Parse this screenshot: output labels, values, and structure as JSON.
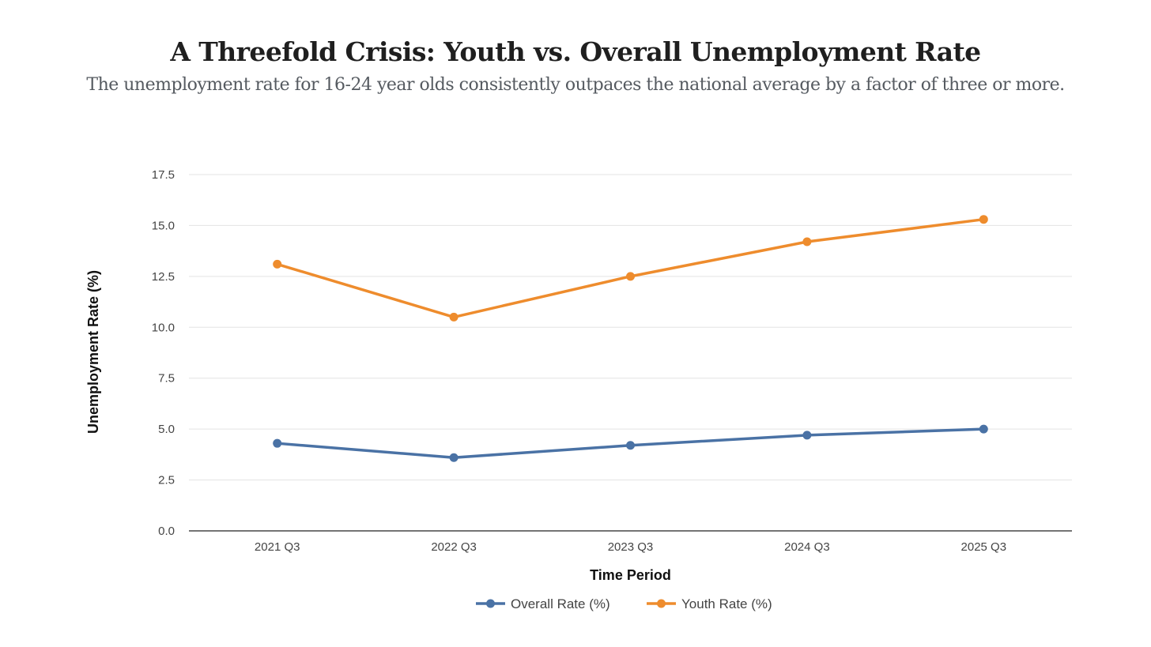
{
  "header": {
    "title": "A Threefold Crisis: Youth vs. Overall Unemployment Rate",
    "subtitle": "The unemployment rate for 16-24 year olds consistently outpaces the national average by a factor of three or more."
  },
  "chart_data": {
    "type": "line",
    "title": "A Threefold Crisis: Youth vs. Overall Unemployment Rate",
    "subtitle": "The unemployment rate for 16-24 year olds consistently outpaces the national average by a factor of three or more.",
    "categories": [
      "2021 Q3",
      "2022 Q3",
      "2023 Q3",
      "2024 Q3",
      "2025 Q3"
    ],
    "series": [
      {
        "name": "Overall Rate (%)",
        "color": "#4a72a5",
        "values": [
          4.3,
          3.6,
          4.2,
          4.7,
          5.0
        ]
      },
      {
        "name": "Youth Rate (%)",
        "color": "#ee8c2d",
        "values": [
          13.1,
          10.5,
          12.5,
          14.2,
          15.3
        ]
      }
    ],
    "xlabel": "Time Period",
    "ylabel": "Unemployment Rate (%)",
    "ylim": [
      0,
      17.5
    ],
    "yticks": [
      "0.0",
      "2.5",
      "5.0",
      "7.5",
      "10.0",
      "12.5",
      "15.0",
      "17.5"
    ],
    "grid": true,
    "legend": "bottom-center"
  }
}
